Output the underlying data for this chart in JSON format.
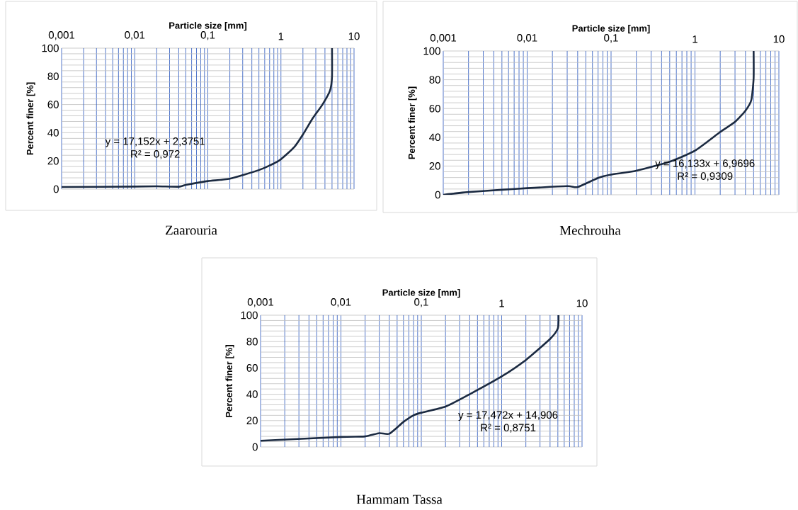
{
  "chart_data": [
    {
      "type": "line",
      "title": "Zaarouria",
      "xlabel": "Particle size [mm]",
      "ylabel": "Percent finer [%]",
      "log": "x",
      "grid": true,
      "marker": "none",
      "line_style": "solid",
      "xlim": [
        0.001,
        10
      ],
      "xticks": [
        {
          "value": 0.001,
          "label": "0,001"
        },
        {
          "value": 0.01,
          "label": "0,01"
        },
        {
          "value": 0.1,
          "label": "0,1"
        },
        {
          "value": 1,
          "label": "1"
        },
        {
          "value": 10,
          "label": "10"
        },
        {
          "value": 0.002,
          "label": null
        },
        {
          "value": 0.003,
          "label": null
        },
        {
          "value": 0.004,
          "label": null
        },
        {
          "value": 0.005,
          "label": null
        },
        {
          "value": 0.006,
          "label": null
        },
        {
          "value": 0.007,
          "label": null
        },
        {
          "value": 0.008,
          "label": null
        },
        {
          "value": 0.009,
          "label": null
        },
        {
          "value": 0.02,
          "label": null
        },
        {
          "value": 0.03,
          "label": null
        },
        {
          "value": 0.04,
          "label": null
        },
        {
          "value": 0.05,
          "label": null
        },
        {
          "value": 0.06,
          "label": null
        },
        {
          "value": 0.07,
          "label": null
        },
        {
          "value": 0.08,
          "label": null
        },
        {
          "value": 0.09,
          "label": null
        },
        {
          "value": 0.2,
          "label": null
        },
        {
          "value": 0.3,
          "label": null
        },
        {
          "value": 0.4,
          "label": null
        },
        {
          "value": 0.5,
          "label": null
        },
        {
          "value": 0.6,
          "label": null
        },
        {
          "value": 0.7,
          "label": null
        },
        {
          "value": 0.8,
          "label": null
        },
        {
          "value": 0.9,
          "label": null
        },
        {
          "value": 2,
          "label": null
        },
        {
          "value": 3,
          "label": null
        },
        {
          "value": 4,
          "label": null
        },
        {
          "value": 5,
          "label": null
        },
        {
          "value": 6,
          "label": null
        },
        {
          "value": 7,
          "label": null
        },
        {
          "value": 8,
          "label": null
        },
        {
          "value": 9,
          "label": null
        }
      ],
      "ylim": [
        0,
        100
      ],
      "yticks": [
        0,
        20,
        40,
        60,
        80,
        100,
        {
          "value": 4,
          "label": null
        },
        {
          "value": 8,
          "label": null
        },
        {
          "value": 12,
          "label": null
        },
        {
          "value": 16,
          "label": null
        },
        {
          "value": 24,
          "label": null
        },
        {
          "value": 28,
          "label": null
        },
        {
          "value": 32,
          "label": null
        },
        {
          "value": 36,
          "label": null
        },
        {
          "value": 44,
          "label": null
        },
        {
          "value": 48,
          "label": null
        },
        {
          "value": 52,
          "label": null
        },
        {
          "value": 56,
          "label": null
        },
        {
          "value": 64,
          "label": null
        },
        {
          "value": 68,
          "label": null
        },
        {
          "value": 72,
          "label": null
        },
        {
          "value": 76,
          "label": null
        },
        {
          "value": 84,
          "label": null
        },
        {
          "value": 88,
          "label": null
        },
        {
          "value": 92,
          "label": null
        },
        {
          "value": 96,
          "label": null
        }
      ],
      "x": [
        0.001,
        0.01,
        0.02,
        0.04,
        0.05,
        0.1,
        0.2,
        0.5,
        0.93,
        1.53,
        2.07,
        2.7,
        3.7,
        4.7,
        5.0,
        5.0
      ],
      "series": [
        {
          "color": "#1b2a41",
          "values": [
            1.5,
            1.8,
            2,
            1.7,
            3,
            5.7,
            7.4,
            13.5,
            20,
            30,
            40,
            50,
            60,
            70,
            80,
            100
          ]
        }
      ],
      "annotations": [
        "y = 17,152x + 2,3751",
        "R² = 0,972"
      ]
    },
    {
      "type": "line",
      "title": "Mechrouha",
      "xlabel": "Particle size [mm]",
      "ylabel": "Percent finer [%]",
      "log": "x",
      "grid": true,
      "marker": "none",
      "line_style": "solid",
      "xlim": [
        0.001,
        10
      ],
      "xticks": [
        {
          "value": 0.001,
          "label": "0,001"
        },
        {
          "value": 0.01,
          "label": "0,01"
        },
        {
          "value": 0.1,
          "label": "0,1"
        },
        {
          "value": 1,
          "label": "1"
        },
        {
          "value": 10,
          "label": "10"
        },
        {
          "value": 0.002,
          "label": null
        },
        {
          "value": 0.003,
          "label": null
        },
        {
          "value": 0.004,
          "label": null
        },
        {
          "value": 0.005,
          "label": null
        },
        {
          "value": 0.006,
          "label": null
        },
        {
          "value": 0.007,
          "label": null
        },
        {
          "value": 0.008,
          "label": null
        },
        {
          "value": 0.009,
          "label": null
        },
        {
          "value": 0.02,
          "label": null
        },
        {
          "value": 0.03,
          "label": null
        },
        {
          "value": 0.04,
          "label": null
        },
        {
          "value": 0.05,
          "label": null
        },
        {
          "value": 0.06,
          "label": null
        },
        {
          "value": 0.07,
          "label": null
        },
        {
          "value": 0.08,
          "label": null
        },
        {
          "value": 0.09,
          "label": null
        },
        {
          "value": 0.2,
          "label": null
        },
        {
          "value": 0.3,
          "label": null
        },
        {
          "value": 0.4,
          "label": null
        },
        {
          "value": 0.5,
          "label": null
        },
        {
          "value": 0.6,
          "label": null
        },
        {
          "value": 0.7,
          "label": null
        },
        {
          "value": 0.8,
          "label": null
        },
        {
          "value": 0.9,
          "label": null
        },
        {
          "value": 2,
          "label": null
        },
        {
          "value": 3,
          "label": null
        },
        {
          "value": 4,
          "label": null
        },
        {
          "value": 5,
          "label": null
        },
        {
          "value": 6,
          "label": null
        },
        {
          "value": 7,
          "label": null
        },
        {
          "value": 8,
          "label": null
        },
        {
          "value": 9,
          "label": null
        }
      ],
      "ylim": [
        0,
        100
      ],
      "yticks": [
        0,
        20,
        40,
        60,
        80,
        100,
        {
          "value": 4,
          "label": null
        },
        {
          "value": 8,
          "label": null
        },
        {
          "value": 12,
          "label": null
        },
        {
          "value": 16,
          "label": null
        },
        {
          "value": 24,
          "label": null
        },
        {
          "value": 28,
          "label": null
        },
        {
          "value": 32,
          "label": null
        },
        {
          "value": 36,
          "label": null
        },
        {
          "value": 44,
          "label": null
        },
        {
          "value": 48,
          "label": null
        },
        {
          "value": 52,
          "label": null
        },
        {
          "value": 56,
          "label": null
        },
        {
          "value": 64,
          "label": null
        },
        {
          "value": 68,
          "label": null
        },
        {
          "value": 72,
          "label": null
        },
        {
          "value": 76,
          "label": null
        },
        {
          "value": 84,
          "label": null
        },
        {
          "value": 88,
          "label": null
        },
        {
          "value": 92,
          "label": null
        },
        {
          "value": 96,
          "label": null
        }
      ],
      "x": [
        0.001,
        0.002,
        0.005,
        0.01,
        0.03,
        0.04,
        0.07,
        0.1,
        0.2,
        0.5,
        1,
        2,
        3,
        4,
        4.7,
        5,
        5
      ],
      "series": [
        {
          "color": "#1b2a41",
          "values": [
            0,
            1.9,
            3.5,
            4.6,
            6,
            5.4,
            11.7,
            14,
            16.7,
            23,
            30.7,
            43.7,
            50.7,
            58.5,
            66,
            81,
            100
          ]
        }
      ],
      "annotations": [
        "y = 16,133x + 6,9696",
        "R² = 0,9309"
      ]
    },
    {
      "type": "line",
      "title": "Hammam Tassa",
      "xlabel": "Particle size [mm]",
      "ylabel": "Percent finer [%]",
      "log": "x",
      "grid": true,
      "marker": "none",
      "line_style": "solid",
      "xlim": [
        0.001,
        10
      ],
      "xticks": [
        {
          "value": 0.001,
          "label": "0,001"
        },
        {
          "value": 0.01,
          "label": "0,01"
        },
        {
          "value": 0.1,
          "label": "0,1"
        },
        {
          "value": 1,
          "label": "1"
        },
        {
          "value": 10,
          "label": "10"
        },
        {
          "value": 0.002,
          "label": null
        },
        {
          "value": 0.003,
          "label": null
        },
        {
          "value": 0.004,
          "label": null
        },
        {
          "value": 0.005,
          "label": null
        },
        {
          "value": 0.006,
          "label": null
        },
        {
          "value": 0.007,
          "label": null
        },
        {
          "value": 0.008,
          "label": null
        },
        {
          "value": 0.009,
          "label": null
        },
        {
          "value": 0.02,
          "label": null
        },
        {
          "value": 0.03,
          "label": null
        },
        {
          "value": 0.04,
          "label": null
        },
        {
          "value": 0.05,
          "label": null
        },
        {
          "value": 0.06,
          "label": null
        },
        {
          "value": 0.07,
          "label": null
        },
        {
          "value": 0.08,
          "label": null
        },
        {
          "value": 0.09,
          "label": null
        },
        {
          "value": 0.2,
          "label": null
        },
        {
          "value": 0.3,
          "label": null
        },
        {
          "value": 0.4,
          "label": null
        },
        {
          "value": 0.5,
          "label": null
        },
        {
          "value": 0.6,
          "label": null
        },
        {
          "value": 0.7,
          "label": null
        },
        {
          "value": 0.8,
          "label": null
        },
        {
          "value": 0.9,
          "label": null
        },
        {
          "value": 2,
          "label": null
        },
        {
          "value": 3,
          "label": null
        },
        {
          "value": 4,
          "label": null
        },
        {
          "value": 5,
          "label": null
        },
        {
          "value": 6,
          "label": null
        },
        {
          "value": 7,
          "label": null
        },
        {
          "value": 8,
          "label": null
        },
        {
          "value": 9,
          "label": null
        }
      ],
      "ylim": [
        0,
        100
      ],
      "yticks": [
        0,
        20,
        40,
        60,
        80,
        100,
        {
          "value": 4,
          "label": null
        },
        {
          "value": 8,
          "label": null
        },
        {
          "value": 12,
          "label": null
        },
        {
          "value": 16,
          "label": null
        },
        {
          "value": 24,
          "label": null
        },
        {
          "value": 28,
          "label": null
        },
        {
          "value": 32,
          "label": null
        },
        {
          "value": 36,
          "label": null
        },
        {
          "value": 44,
          "label": null
        },
        {
          "value": 48,
          "label": null
        },
        {
          "value": 52,
          "label": null
        },
        {
          "value": 56,
          "label": null
        },
        {
          "value": 64,
          "label": null
        },
        {
          "value": 68,
          "label": null
        },
        {
          "value": 72,
          "label": null
        },
        {
          "value": 76,
          "label": null
        },
        {
          "value": 84,
          "label": null
        },
        {
          "value": 88,
          "label": null
        },
        {
          "value": 92,
          "label": null
        },
        {
          "value": 96,
          "label": null
        }
      ],
      "x": [
        0.001,
        0.01,
        0.02,
        0.03,
        0.04,
        0.06,
        0.08,
        0.1,
        0.2,
        0.4,
        1,
        2,
        4,
        5,
        5.1
      ],
      "series": [
        {
          "color": "#1b2a41",
          "values": [
            4.7,
            7.6,
            8,
            10.5,
            10,
            19,
            24,
            26,
            30.6,
            40,
            53.5,
            66,
            82,
            90,
            100
          ]
        }
      ],
      "annotations": [
        "y = 17,472x + 14,906",
        "R² = 0,8751"
      ]
    }
  ]
}
